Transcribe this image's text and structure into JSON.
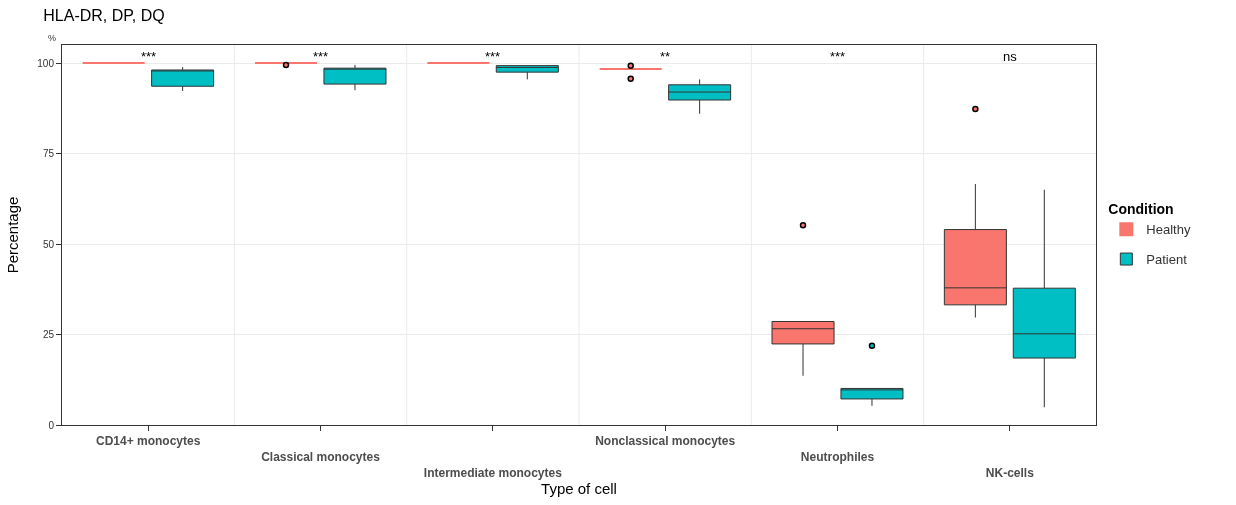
{
  "chart_data": {
    "type": "box",
    "title": "HLA-DR, DP, DQ",
    "xlabel": "Type of cell",
    "ylabel": "Percentage",
    "legend_title": "Condition",
    "categories": [
      "CD14+ monocytes",
      "Classical monocytes",
      "Intermediate monocytes",
      "Nonclassical monocytes",
      "Neutrophiles",
      "NK-cells"
    ],
    "ylim": [
      0,
      105
    ],
    "yticks": [
      0,
      25,
      50,
      75,
      100
    ],
    "grid": true,
    "legend": "right",
    "series": [
      {
        "name": "Healthy",
        "color": "#f8766d",
        "boxes": [
          {
            "low": 100,
            "q1": 100,
            "median": 100,
            "q3": 100,
            "high": 100
          },
          {
            "low": 100,
            "q1": 100,
            "median": 100,
            "q3": 100,
            "high": 100,
            "outliers": [
              99.5
            ]
          },
          {
            "low": 100,
            "q1": 100,
            "median": 100,
            "q3": 100,
            "high": 100
          },
          {
            "low": 98.4,
            "q1": 98.4,
            "median": 98.4,
            "q3": 98.4,
            "high": 98.4,
            "outliers": [
              99.3,
              95.7
            ]
          },
          {
            "low": 13.6,
            "q1": 22.4,
            "median": 26.6,
            "q3": 28.6,
            "high": 28.6,
            "outliers": [
              55.2
            ]
          },
          {
            "low": 29.7,
            "q1": 33.2,
            "median": 37.9,
            "q3": 54.0,
            "high": 66.6,
            "outliers": [
              87.3
            ]
          }
        ]
      },
      {
        "name": "Patient",
        "color": "#00bfc4",
        "boxes": [
          {
            "low": 92.3,
            "q1": 93.6,
            "median": 98.1,
            "q3": 98.1,
            "high": 98.9
          },
          {
            "low": 92.5,
            "q1": 94.2,
            "median": 98.6,
            "q3": 98.6,
            "high": 99.5
          },
          {
            "low": 95.5,
            "q1": 97.5,
            "median": 98.8,
            "q3": 99.3,
            "high": 99.3
          },
          {
            "low": 86.0,
            "q1": 89.8,
            "median": 92.0,
            "q3": 94.0,
            "high": 95.5
          },
          {
            "low": 5.3,
            "q1": 7.2,
            "median": 9.7,
            "q3": 10.1,
            "high": 10.1,
            "outliers": [
              21.9
            ]
          },
          {
            "low": 4.9,
            "q1": 18.5,
            "median": 25.2,
            "q3": 37.8,
            "high": 65.0
          }
        ]
      }
    ],
    "annotations": [
      "%",
      "***",
      "***",
      "***",
      "**",
      "***",
      "ns"
    ]
  }
}
